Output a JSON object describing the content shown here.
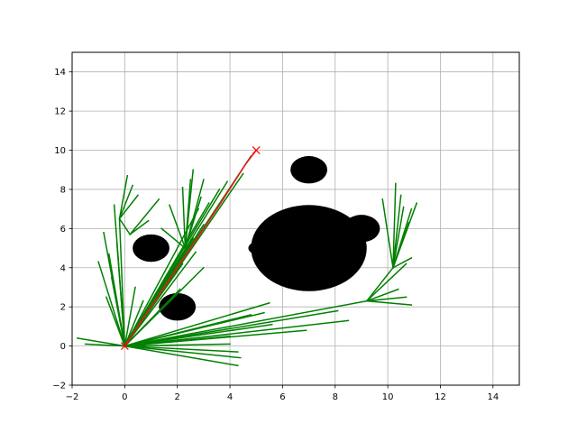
{
  "chart_data": {
    "type": "scatter",
    "title": "",
    "xlabel": "",
    "ylabel": "",
    "xlim": [
      -2,
      15
    ],
    "ylim": [
      -2,
      15
    ],
    "xticks": [
      -2,
      0,
      2,
      4,
      6,
      8,
      10,
      12,
      14
    ],
    "yticks": [
      -2,
      0,
      2,
      4,
      6,
      8,
      10,
      12,
      14
    ],
    "grid": true,
    "obstacles": [
      {
        "x": 7.0,
        "y": 9.0,
        "r": 0.7
      },
      {
        "x": 1.0,
        "y": 5.0,
        "r": 0.7
      },
      {
        "x": 2.0,
        "y": 2.0,
        "r": 0.7
      },
      {
        "x": 7.0,
        "y": 5.0,
        "r": 2.2
      },
      {
        "x": 9.0,
        "y": 6.0,
        "r": 0.7
      },
      {
        "x": 5.0,
        "y": 5.0,
        "r": 0.3
      }
    ],
    "start": {
      "x": 0,
      "y": 0
    },
    "goal": {
      "x": 5,
      "y": 10
    },
    "path": [
      [
        0,
        0
      ],
      [
        1.2,
        2.4
      ],
      [
        2.5,
        5.0
      ],
      [
        3.6,
        7.2
      ],
      [
        4.6,
        9.3
      ],
      [
        5.0,
        10.0
      ]
    ],
    "tree_edges": [
      [
        [
          0,
          0
        ],
        [
          -1.8,
          0.4
        ]
      ],
      [
        [
          0,
          0
        ],
        [
          -1.5,
          0.1
        ]
      ],
      [
        [
          0,
          0
        ],
        [
          -0.5,
          0.1
        ]
      ],
      [
        [
          0,
          0
        ],
        [
          -1.0,
          4.3
        ]
      ],
      [
        [
          0,
          0
        ],
        [
          -0.8,
          5.8
        ]
      ],
      [
        [
          0,
          0
        ],
        [
          -0.6,
          4.7
        ]
      ],
      [
        [
          0,
          0
        ],
        [
          -0.3,
          5.3
        ]
      ],
      [
        [
          0,
          0
        ],
        [
          -0.5,
          3.5
        ]
      ],
      [
        [
          0,
          0
        ],
        [
          -0.7,
          2.5
        ]
      ],
      [
        [
          0,
          0
        ],
        [
          -0.4,
          7.2
        ]
      ],
      [
        [
          0,
          0
        ],
        [
          -0.2,
          6.5
        ]
      ],
      [
        [
          -0.2,
          6.5
        ],
        [
          0.1,
          8.7
        ]
      ],
      [
        [
          -0.2,
          6.5
        ],
        [
          0.3,
          8.2
        ]
      ],
      [
        [
          -0.2,
          6.5
        ],
        [
          0.5,
          7.7
        ]
      ],
      [
        [
          -0.2,
          6.5
        ],
        [
          0.2,
          5.7
        ]
      ],
      [
        [
          0.2,
          5.7
        ],
        [
          1.3,
          7.5
        ]
      ],
      [
        [
          0.2,
          5.7
        ],
        [
          0.9,
          6.4
        ]
      ],
      [
        [
          0,
          0
        ],
        [
          0.4,
          3.0
        ]
      ],
      [
        [
          0,
          0
        ],
        [
          0.7,
          2.3
        ]
      ],
      [
        [
          0,
          0
        ],
        [
          4.8,
          9.7
        ]
      ],
      [
        [
          0,
          0
        ],
        [
          4.5,
          8.8
        ]
      ],
      [
        [
          0,
          0
        ],
        [
          3.9,
          8.4
        ]
      ],
      [
        [
          0,
          0
        ],
        [
          3.6,
          8.0
        ]
      ],
      [
        [
          0,
          0
        ],
        [
          3.2,
          7.3
        ]
      ],
      [
        [
          0,
          0
        ],
        [
          2.8,
          7.0
        ]
      ],
      [
        [
          0,
          0
        ],
        [
          3.0,
          6.2
        ]
      ],
      [
        [
          0,
          0
        ],
        [
          2.6,
          5.5
        ]
      ],
      [
        [
          0,
          0
        ],
        [
          2.7,
          4.8
        ]
      ],
      [
        [
          0,
          0
        ],
        [
          2.2,
          4.2
        ]
      ],
      [
        [
          0,
          0
        ],
        [
          3.0,
          4.0
        ]
      ],
      [
        [
          0,
          0
        ],
        [
          2.1,
          2.9
        ]
      ],
      [
        [
          2.3,
          5.0
        ],
        [
          2.6,
          9.0
        ]
      ],
      [
        [
          2.3,
          5.0
        ],
        [
          2.5,
          8.5
        ]
      ],
      [
        [
          2.3,
          5.0
        ],
        [
          2.2,
          8.1
        ]
      ],
      [
        [
          2.3,
          5.0
        ],
        [
          1.7,
          7.2
        ]
      ],
      [
        [
          2.3,
          5.0
        ],
        [
          1.4,
          6.0
        ]
      ],
      [
        [
          2.3,
          5.0
        ],
        [
          3.0,
          8.5
        ]
      ],
      [
        [
          2.3,
          5.0
        ],
        [
          2.9,
          7.6
        ]
      ],
      [
        [
          0,
          0
        ],
        [
          5.5,
          2.2
        ]
      ],
      [
        [
          0,
          0
        ],
        [
          5.3,
          1.7
        ]
      ],
      [
        [
          0,
          0
        ],
        [
          4.8,
          1.6
        ]
      ],
      [
        [
          0,
          0
        ],
        [
          6.9,
          0.8
        ]
      ],
      [
        [
          0,
          0
        ],
        [
          5.6,
          1.1
        ]
      ],
      [
        [
          0,
          0
        ],
        [
          4.0,
          0.1
        ]
      ],
      [
        [
          0,
          0
        ],
        [
          4.3,
          -0.3
        ]
      ],
      [
        [
          0,
          0
        ],
        [
          4.4,
          -0.6
        ]
      ],
      [
        [
          0,
          0
        ],
        [
          4.3,
          -1.0
        ]
      ],
      [
        [
          0,
          0
        ],
        [
          4.0,
          0.5
        ]
      ],
      [
        [
          0,
          0
        ],
        [
          8.5,
          1.3
        ]
      ],
      [
        [
          0,
          0
        ],
        [
          8.1,
          1.8
        ]
      ],
      [
        [
          0,
          0
        ],
        [
          9.2,
          2.3
        ]
      ],
      [
        [
          9.2,
          2.3
        ],
        [
          10.2,
          4.0
        ]
      ],
      [
        [
          9.2,
          2.3
        ],
        [
          10.9,
          2.1
        ]
      ],
      [
        [
          9.2,
          2.3
        ],
        [
          10.7,
          2.5
        ]
      ],
      [
        [
          9.2,
          2.3
        ],
        [
          10.4,
          2.9
        ]
      ],
      [
        [
          9.2,
          2.3
        ],
        [
          10.7,
          4.2
        ]
      ],
      [
        [
          10.2,
          4.0
        ],
        [
          9.8,
          7.5
        ]
      ],
      [
        [
          10.2,
          4.0
        ],
        [
          10.3,
          8.3
        ]
      ],
      [
        [
          10.2,
          4.0
        ],
        [
          10.5,
          7.7
        ]
      ],
      [
        [
          10.2,
          4.0
        ],
        [
          10.9,
          7.0
        ]
      ],
      [
        [
          10.2,
          4.0
        ],
        [
          10.8,
          6.3
        ]
      ],
      [
        [
          10.2,
          4.0
        ],
        [
          10.6,
          7.1
        ]
      ],
      [
        [
          10.2,
          4.0
        ],
        [
          11.1,
          7.3
        ]
      ],
      [
        [
          10.2,
          4.0
        ],
        [
          10.9,
          4.5
        ]
      ]
    ],
    "colors": {
      "tree": "#008000",
      "path": "#e31a1c",
      "obstacle": "#000000",
      "endpoint": "#ff0000",
      "grid": "#b0b0b0"
    }
  }
}
